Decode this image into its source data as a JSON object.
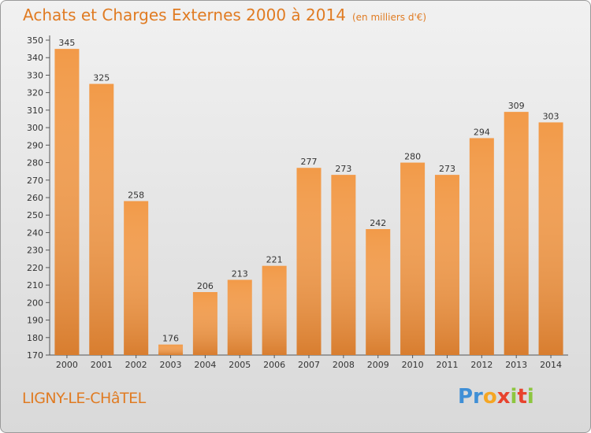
{
  "header": {
    "title": "Achats et Charges Externes 2000 à 2014",
    "subtitle": "(en milliers d'€)"
  },
  "footer": {
    "place": "LIGNY-LE-CHâTEL",
    "logo_text": "Proxiti"
  },
  "colors": {
    "accent": "#e07b22",
    "bar_light": "#f7a551",
    "bar_dark": "#d36f1c"
  },
  "chart_data": {
    "type": "bar",
    "title": "Achats et Charges Externes 2000 à 2014",
    "subtitle": "(en milliers d'€)",
    "xlabel": "",
    "ylabel": "",
    "categories": [
      "2000",
      "2001",
      "2002",
      "2003",
      "2004",
      "2005",
      "2006",
      "2007",
      "2008",
      "2009",
      "2010",
      "2011",
      "2012",
      "2013",
      "2014"
    ],
    "values": [
      345,
      325,
      258,
      176,
      206,
      213,
      221,
      277,
      273,
      242,
      280,
      273,
      294,
      309,
      303
    ],
    "ylim": [
      170,
      350
    ],
    "yticks": [
      170,
      180,
      190,
      200,
      210,
      220,
      230,
      240,
      250,
      260,
      270,
      280,
      290,
      300,
      310,
      320,
      330,
      340,
      350
    ],
    "grid": false,
    "legend": "none"
  }
}
